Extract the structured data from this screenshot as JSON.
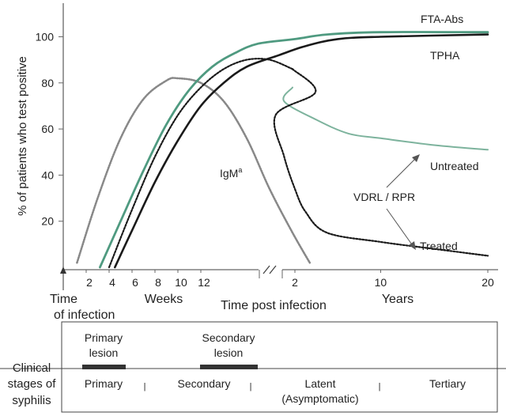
{
  "chart_data": {
    "type": "line",
    "ylabel": "% of patients who test positive",
    "xlabel": "Time post infection",
    "ylim": [
      0,
      110
    ],
    "yticks": [
      20,
      40,
      60,
      80,
      100
    ],
    "x_segments": [
      {
        "name": "weeks",
        "label": "Weeks",
        "ticks": [
          2,
          4,
          6,
          8,
          10,
          12
        ],
        "range": [
          0,
          14
        ]
      },
      {
        "name": "years",
        "label": "Years",
        "ticks": [
          2,
          10,
          20
        ],
        "range": [
          0,
          20
        ]
      }
    ],
    "origin_label_1": "Time",
    "origin_label_2": "of infection",
    "series": [
      {
        "name": "FTA-Abs",
        "label": "FTA-Abs",
        "color": "#4f9a80",
        "points": [
          [
            "w",
            3.2,
            0
          ],
          [
            "w",
            5,
            20
          ],
          [
            "w",
            7,
            42
          ],
          [
            "w",
            9,
            62
          ],
          [
            "w",
            11,
            77
          ],
          [
            "w",
            13,
            87
          ],
          [
            "w",
            15,
            93
          ],
          [
            "w",
            17,
            97
          ],
          [
            "y",
            2,
            99
          ],
          [
            "y",
            5,
            101
          ],
          [
            "y",
            10,
            102
          ],
          [
            "y",
            20,
            102
          ]
        ]
      },
      {
        "name": "TPHA",
        "label": "TPHA",
        "color": "#1a1a1a",
        "points": [
          [
            "w",
            4.5,
            0
          ],
          [
            "w",
            6,
            16
          ],
          [
            "w",
            8,
            37
          ],
          [
            "w",
            10,
            55
          ],
          [
            "w",
            12,
            70
          ],
          [
            "w",
            14,
            80
          ],
          [
            "w",
            16,
            87
          ],
          [
            "y",
            0.5,
            92
          ],
          [
            "y",
            3,
            96
          ],
          [
            "y",
            6,
            99
          ],
          [
            "y",
            10,
            100
          ],
          [
            "y",
            20,
            101
          ]
        ]
      },
      {
        "name": "IgM",
        "label": "IgM",
        "superscript": "a",
        "color": "#888888",
        "points": [
          [
            "w",
            1.2,
            2
          ],
          [
            "w",
            3,
            30
          ],
          [
            "w",
            5,
            56
          ],
          [
            "w",
            7,
            73
          ],
          [
            "w",
            9,
            81
          ],
          [
            "w",
            10,
            82
          ],
          [
            "w",
            12,
            80
          ],
          [
            "w",
            14,
            72
          ],
          [
            "w",
            16,
            56
          ],
          [
            "w",
            18,
            34
          ],
          [
            "w",
            20,
            15
          ],
          [
            "w",
            21.5,
            2
          ]
        ]
      },
      {
        "name": "VDRL/RPR early",
        "color": "#1a1a1a",
        "points": [
          [
            "w",
            4,
            0
          ],
          [
            "w",
            6,
            25
          ],
          [
            "w",
            8,
            48
          ],
          [
            "w",
            10,
            66
          ],
          [
            "w",
            12,
            78
          ],
          [
            "w",
            14,
            86
          ],
          [
            "w",
            16,
            90
          ],
          [
            "w",
            18,
            90
          ],
          [
            "w",
            20,
            86
          ]
        ]
      },
      {
        "name": "VDRL/RPR untreated",
        "label": "Untreated",
        "color": "#7db39d",
        "points": [
          [
            "w",
            20,
            78
          ],
          [
            "y",
            1,
            72
          ],
          [
            "y",
            4,
            64
          ],
          [
            "y",
            7,
            58
          ],
          [
            "y",
            10,
            56
          ],
          [
            "y",
            15,
            53
          ],
          [
            "y",
            20,
            51
          ]
        ]
      },
      {
        "name": "VDRL/RPR treated",
        "label": "Treated",
        "color": "#1a1a1a",
        "points": [
          [
            "w",
            20,
            86
          ],
          [
            "w",
            22,
            76
          ],
          [
            "y",
            0.2,
            66
          ],
          [
            "y",
            1,
            48
          ],
          [
            "y",
            2,
            34
          ],
          [
            "y",
            3,
            24
          ],
          [
            "y",
            5,
            15
          ],
          [
            "y",
            10,
            11
          ],
          [
            "y",
            15,
            8
          ],
          [
            "y",
            20,
            5
          ]
        ]
      }
    ],
    "annotations": {
      "vdrl_rpr": "VDRL / RPR",
      "untreated": "Untreated",
      "treated": "Treated"
    }
  },
  "stages": {
    "title_lines": [
      "Clinical",
      "stages of",
      "syphilis"
    ],
    "lesions": [
      {
        "lines": [
          "Primary",
          "lesion"
        ]
      },
      {
        "lines": [
          "Secondary",
          "lesion"
        ]
      }
    ],
    "labels": [
      {
        "lines": [
          "Primary"
        ]
      },
      {
        "lines": [
          "Secondary"
        ]
      },
      {
        "lines": [
          "Latent",
          "(Asymptomatic)"
        ]
      },
      {
        "lines": [
          "Tertiary"
        ]
      }
    ],
    "separator": "|"
  }
}
